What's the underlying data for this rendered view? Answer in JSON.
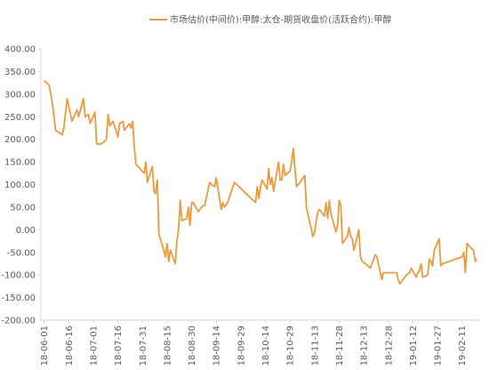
{
  "chart_data": {
    "type": "line",
    "legend": "top",
    "grid": false,
    "series": [
      {
        "name": "市场估价(中间价):甲醇:太仓-期货收盘价(活跃合约):甲醇",
        "color": "#ed9a3e",
        "x": [
          "2018-06-01",
          "2018-06-04",
          "2018-06-06",
          "2018-06-08",
          "2018-06-12",
          "2018-06-13",
          "2018-06-15",
          "2018-06-18",
          "2018-06-21",
          "2018-06-22",
          "2018-06-25",
          "2018-06-26",
          "2018-06-28",
          "2018-06-29",
          "2018-07-02",
          "2018-07-03",
          "2018-07-06",
          "2018-07-09",
          "2018-07-10",
          "2018-07-11",
          "2018-07-13",
          "2018-07-16",
          "2018-07-17",
          "2018-07-19",
          "2018-07-20",
          "2018-07-23",
          "2018-07-24",
          "2018-07-25",
          "2018-07-26",
          "2018-07-27",
          "2018-08-01",
          "2018-08-02",
          "2018-08-03",
          "2018-08-06",
          "2018-08-07",
          "2018-08-08",
          "2018-08-09",
          "2018-08-10",
          "2018-08-13",
          "2018-08-14",
          "2018-08-15",
          "2018-08-16",
          "2018-08-17",
          "2018-08-20",
          "2018-08-21",
          "2018-08-22",
          "2018-08-23",
          "2018-08-24",
          "2018-08-27",
          "2018-08-28",
          "2018-08-29",
          "2018-08-30",
          "2018-08-31",
          "2018-09-03",
          "2018-09-05",
          "2018-09-07",
          "2018-09-10",
          "2018-09-11",
          "2018-09-13",
          "2018-09-14",
          "2018-09-17",
          "2018-09-18",
          "2018-09-19",
          "2018-09-21",
          "2018-09-25",
          "2018-10-08",
          "2018-10-09",
          "2018-10-10",
          "2018-10-11",
          "2018-10-12",
          "2018-10-15",
          "2018-10-16",
          "2018-10-17",
          "2018-10-18",
          "2018-10-19",
          "2018-10-22",
          "2018-10-23",
          "2018-10-24",
          "2018-10-25",
          "2018-10-26",
          "2018-10-29",
          "2018-10-30",
          "2018-10-31",
          "2018-11-01",
          "2018-11-02",
          "2018-11-05",
          "2018-11-07",
          "2018-11-08",
          "2018-11-12",
          "2018-11-13",
          "2018-11-14",
          "2018-11-15",
          "2018-11-16",
          "2018-11-19",
          "2018-11-20",
          "2018-11-21",
          "2018-11-22",
          "2018-11-23",
          "2018-11-26",
          "2018-11-27",
          "2018-11-28",
          "2018-11-29",
          "2018-11-30",
          "2018-12-03",
          "2018-12-04",
          "2018-12-05",
          "2018-12-06",
          "2018-12-07",
          "2018-12-10",
          "2018-12-11",
          "2018-12-12",
          "2018-12-14",
          "2018-12-17",
          "2018-12-18",
          "2018-12-19",
          "2018-12-20",
          "2018-12-21",
          "2018-12-24",
          "2018-12-25",
          "2019-01-02",
          "2019-01-03",
          "2019-01-04",
          "2019-01-07",
          "2019-01-08",
          "2019-01-10",
          "2019-01-11",
          "2019-01-14",
          "2019-01-15",
          "2019-01-16",
          "2019-01-17",
          "2019-01-18",
          "2019-01-21",
          "2019-01-22",
          "2019-01-23",
          "2019-01-24",
          "2019-01-25",
          "2019-01-28",
          "2019-01-29",
          "2019-01-30",
          "2019-02-11",
          "2019-02-12",
          "2019-02-13",
          "2019-02-14",
          "2019-02-15",
          "2019-02-18",
          "2019-02-19",
          "2019-02-20"
        ],
        "values": [
          330,
          320,
          280,
          220,
          210,
          225,
          290,
          240,
          265,
          250,
          290,
          250,
          255,
          235,
          260,
          190,
          190,
          200,
          255,
          230,
          240,
          205,
          235,
          240,
          220,
          235,
          225,
          240,
          180,
          145,
          125,
          150,
          105,
          140,
          85,
          80,
          110,
          -10,
          -45,
          -60,
          -30,
          -70,
          -45,
          -75,
          -25,
          0,
          65,
          20,
          25,
          50,
          10,
          60,
          60,
          40,
          50,
          55,
          105,
          100,
          95,
          115,
          45,
          60,
          50,
          60,
          105,
          60,
          95,
          70,
          95,
          110,
          90,
          135,
          100,
          115,
          85,
          150,
          110,
          110,
          145,
          120,
          130,
          150,
          180,
          135,
          95,
          110,
          120,
          50,
          -15,
          -5,
          20,
          40,
          45,
          30,
          60,
          25,
          65,
          35,
          -5,
          10,
          65,
          55,
          -30,
          -15,
          5,
          -15,
          -20,
          -45,
          0,
          -60,
          -70,
          -75,
          -85,
          -75,
          -65,
          -55,
          -60,
          -110,
          -95,
          -95,
          -110,
          -120,
          -105,
          -100,
          -95,
          -85,
          -105,
          -95,
          -90,
          -75,
          -105,
          -100,
          -65,
          -70,
          -80,
          -45,
          -20,
          -80,
          -75,
          -60,
          -50,
          -95,
          -30,
          -35,
          -45,
          -70,
          -65
        ]
      }
    ],
    "xlim": [
      "2018-05-30",
      "2019-02-22"
    ],
    "xticks": [
      "2018-06-01",
      "2018-06-16",
      "2018-07-01",
      "2018-07-16",
      "2018-07-31",
      "2018-08-15",
      "2018-08-30",
      "2018-09-14",
      "2018-09-29",
      "2018-10-14",
      "2018-10-29",
      "2018-11-13",
      "2018-11-28",
      "2018-12-13",
      "2018-12-28",
      "2019-01-12",
      "2019-01-27",
      "2019-02-11"
    ],
    "ylim": [
      -200,
      400
    ],
    "yticks": [
      {
        "value": -200,
        "label": "-200.00"
      },
      {
        "value": -150,
        "label": "-150.00"
      },
      {
        "value": -100,
        "label": "-100.00"
      },
      {
        "value": -50,
        "label": "-50.00"
      },
      {
        "value": 0,
        "label": "0.00"
      },
      {
        "value": 50,
        "label": "50.00"
      },
      {
        "value": 100,
        "label": "100.00"
      },
      {
        "value": 150,
        "label": "150.00"
      },
      {
        "value": 200,
        "label": "200.00"
      },
      {
        "value": 250,
        "label": "250.00"
      },
      {
        "value": 300,
        "label": "300.00"
      },
      {
        "value": 350,
        "label": "350.00"
      },
      {
        "value": 400,
        "label": "400.00"
      }
    ]
  }
}
